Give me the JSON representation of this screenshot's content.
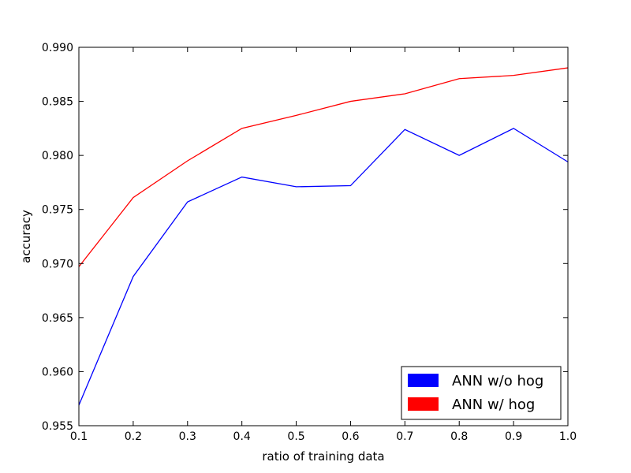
{
  "chart_data": {
    "type": "line",
    "title": "",
    "xlabel": "ratio of training data",
    "ylabel": "accuracy",
    "xlim": [
      0.1,
      1.0
    ],
    "ylim": [
      0.955,
      0.99
    ],
    "x_ticks": [
      "0.1",
      "0.2",
      "0.3",
      "0.4",
      "0.5",
      "0.6",
      "0.7",
      "0.8",
      "0.9",
      "1.0"
    ],
    "y_ticks": [
      "0.955",
      "0.960",
      "0.965",
      "0.970",
      "0.975",
      "0.980",
      "0.985",
      "0.990"
    ],
    "grid": false,
    "legend_position": "bottom-right",
    "x": [
      0.1,
      0.2,
      0.3,
      0.4,
      0.5,
      0.6,
      0.7,
      0.8,
      0.9,
      1.0
    ],
    "series": [
      {
        "name": "ANN w/o hog",
        "color": "#0000ff",
        "values": [
          0.9569,
          0.9688,
          0.9757,
          0.978,
          0.9771,
          0.9772,
          0.9824,
          0.98,
          0.9825,
          0.9794
        ]
      },
      {
        "name": "ANN w/ hog",
        "color": "#ff0000",
        "values": [
          0.9697,
          0.9761,
          0.9795,
          0.9825,
          0.9837,
          0.985,
          0.9857,
          0.9871,
          0.9874,
          0.9881
        ]
      }
    ]
  }
}
